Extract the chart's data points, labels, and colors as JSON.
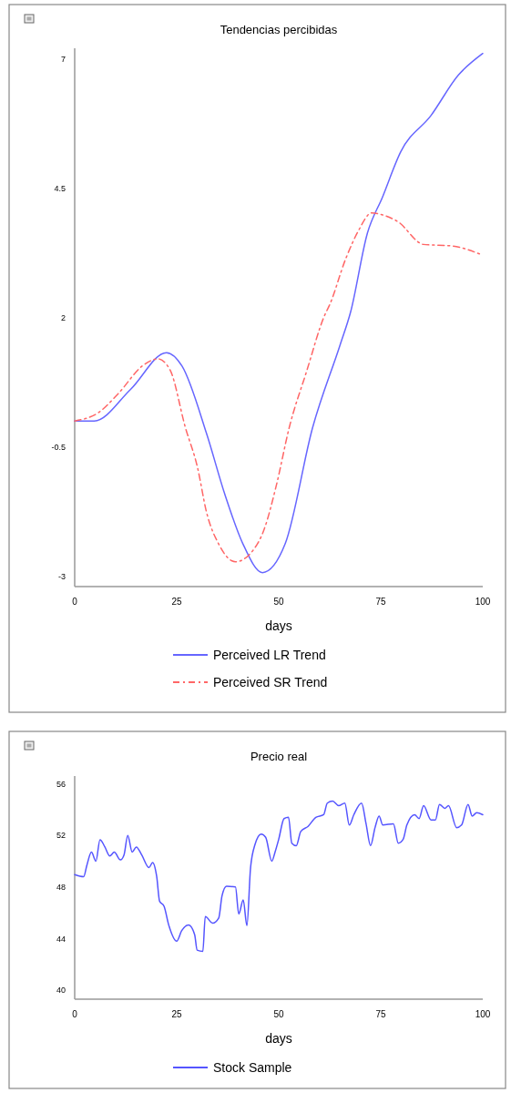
{
  "chart_data": [
    {
      "type": "line",
      "title": "Tendencias percibidas",
      "xlabel": "days",
      "xlim": [
        0,
        100
      ],
      "xticks": [
        0,
        25,
        50,
        75,
        100
      ],
      "ylim": [
        -3.2,
        7.2
      ],
      "yticks": [
        -3,
        -0.5,
        2,
        4.5,
        7
      ],
      "legend": "bottom",
      "series": [
        {
          "name": "Perceived LR Trend",
          "color": "#6666ff",
          "line_style": "solid",
          "x": [
            0,
            4.8,
            13.7,
            22.5,
            26.3,
            32.3,
            36.8,
            41.2,
            46,
            51.6,
            58.3,
            65,
            67.6,
            71.7,
            75.4,
            79.9,
            87.3,
            94,
            100
          ],
          "values": [
            0,
            0,
            0.61,
            1.32,
            1.06,
            -0.24,
            -1.42,
            -2.37,
            -2.93,
            -2.37,
            -0.13,
            1.46,
            2.1,
            3.62,
            4.32,
            5.2,
            5.9,
            6.68,
            7.1
          ]
        },
        {
          "name": "Perceived SR Trend",
          "color": "#ff6666",
          "line_style": "dashed",
          "x": [
            0,
            5.8,
            10.7,
            16.7,
            20.4,
            23.4,
            27.1,
            30.1,
            32.3,
            35.3,
            39.4,
            43.5,
            46.4,
            49.4,
            52.6,
            56.8,
            61.3,
            62.4,
            66.5,
            69.5,
            72.8,
            75,
            79.2,
            85.5,
            92.6,
            100
          ],
          "values": [
            0,
            0.16,
            0.53,
            1.07,
            1.2,
            0.98,
            -0.12,
            -0.9,
            -1.76,
            -2.38,
            -2.72,
            -2.52,
            -2.1,
            -1.25,
            -0.12,
            0.95,
            2.05,
            2.23,
            3.15,
            3.67,
            4.02,
            3.99,
            3.85,
            3.41,
            3.38,
            3.2
          ]
        }
      ]
    },
    {
      "type": "line",
      "title": "Precio real",
      "xlabel": "days",
      "xlim": [
        0,
        100
      ],
      "xticks": [
        0,
        25,
        50,
        75,
        100
      ],
      "ylim": [
        39.3,
        56.6
      ],
      "yticks": [
        40,
        44,
        48,
        52,
        56
      ],
      "legend": "bottom",
      "series": [
        {
          "name": "Stock Sample",
          "color": "#5555ff",
          "line_style": "solid",
          "x": [
            0,
            2.2,
            3,
            4.1,
            5.2,
            6.2,
            7.4,
            8.6,
            9.7,
            11.2,
            12.1,
            13,
            14.1,
            15.1,
            16.4,
            18.2,
            19.1,
            20.1,
            20.8,
            21.9,
            23,
            25,
            26.2,
            27.9,
            29.4,
            30,
            31.4,
            32,
            33.8,
            35.3,
            36.1,
            37.2,
            39.4,
            40.2,
            41.3,
            42.2,
            43.1,
            44.2,
            45.7,
            46.8,
            48.3,
            49.1,
            50,
            51.3,
            52.4,
            53.2,
            54.3,
            55.4,
            57.2,
            59.1,
            61,
            61.9,
            63.2,
            64.7,
            66.2,
            67.3,
            68.4,
            70.3,
            71.4,
            72.5,
            73.6,
            74.6,
            75.5,
            78.1,
            79.3,
            80.5,
            81.4,
            83.3,
            84.4,
            85.5,
            87.3,
            88.4,
            89.4,
            90.7,
            91.6,
            93.6,
            94.8,
            96.4,
            97.4,
            98.5,
            100
          ],
          "values": [
            48.96,
            48.8,
            49.7,
            50.7,
            50,
            51.66,
            51.1,
            50.4,
            50.7,
            50.1,
            50.5,
            52,
            50.7,
            51.1,
            50.5,
            49.5,
            49.9,
            48.8,
            46.9,
            46.5,
            45.1,
            43.8,
            44.6,
            45.05,
            44.3,
            43.1,
            43,
            45.7,
            45.2,
            45.6,
            47.3,
            48.05,
            48,
            45.9,
            47,
            45,
            49.5,
            51.3,
            52.1,
            51.85,
            50,
            50.7,
            51.7,
            53.3,
            53.4,
            51.4,
            51.2,
            52.3,
            52.7,
            53.4,
            53.6,
            54.5,
            54.65,
            54.3,
            54.5,
            52.8,
            53.6,
            54.5,
            52.9,
            51.2,
            52.6,
            53.5,
            52.8,
            52.9,
            51.4,
            51.7,
            52.8,
            53.6,
            53.3,
            54.3,
            53.2,
            53.2,
            54.4,
            54.1,
            54.3,
            52.6,
            52.8,
            54.4,
            53.5,
            53.75,
            53.6
          ]
        }
      ]
    }
  ]
}
